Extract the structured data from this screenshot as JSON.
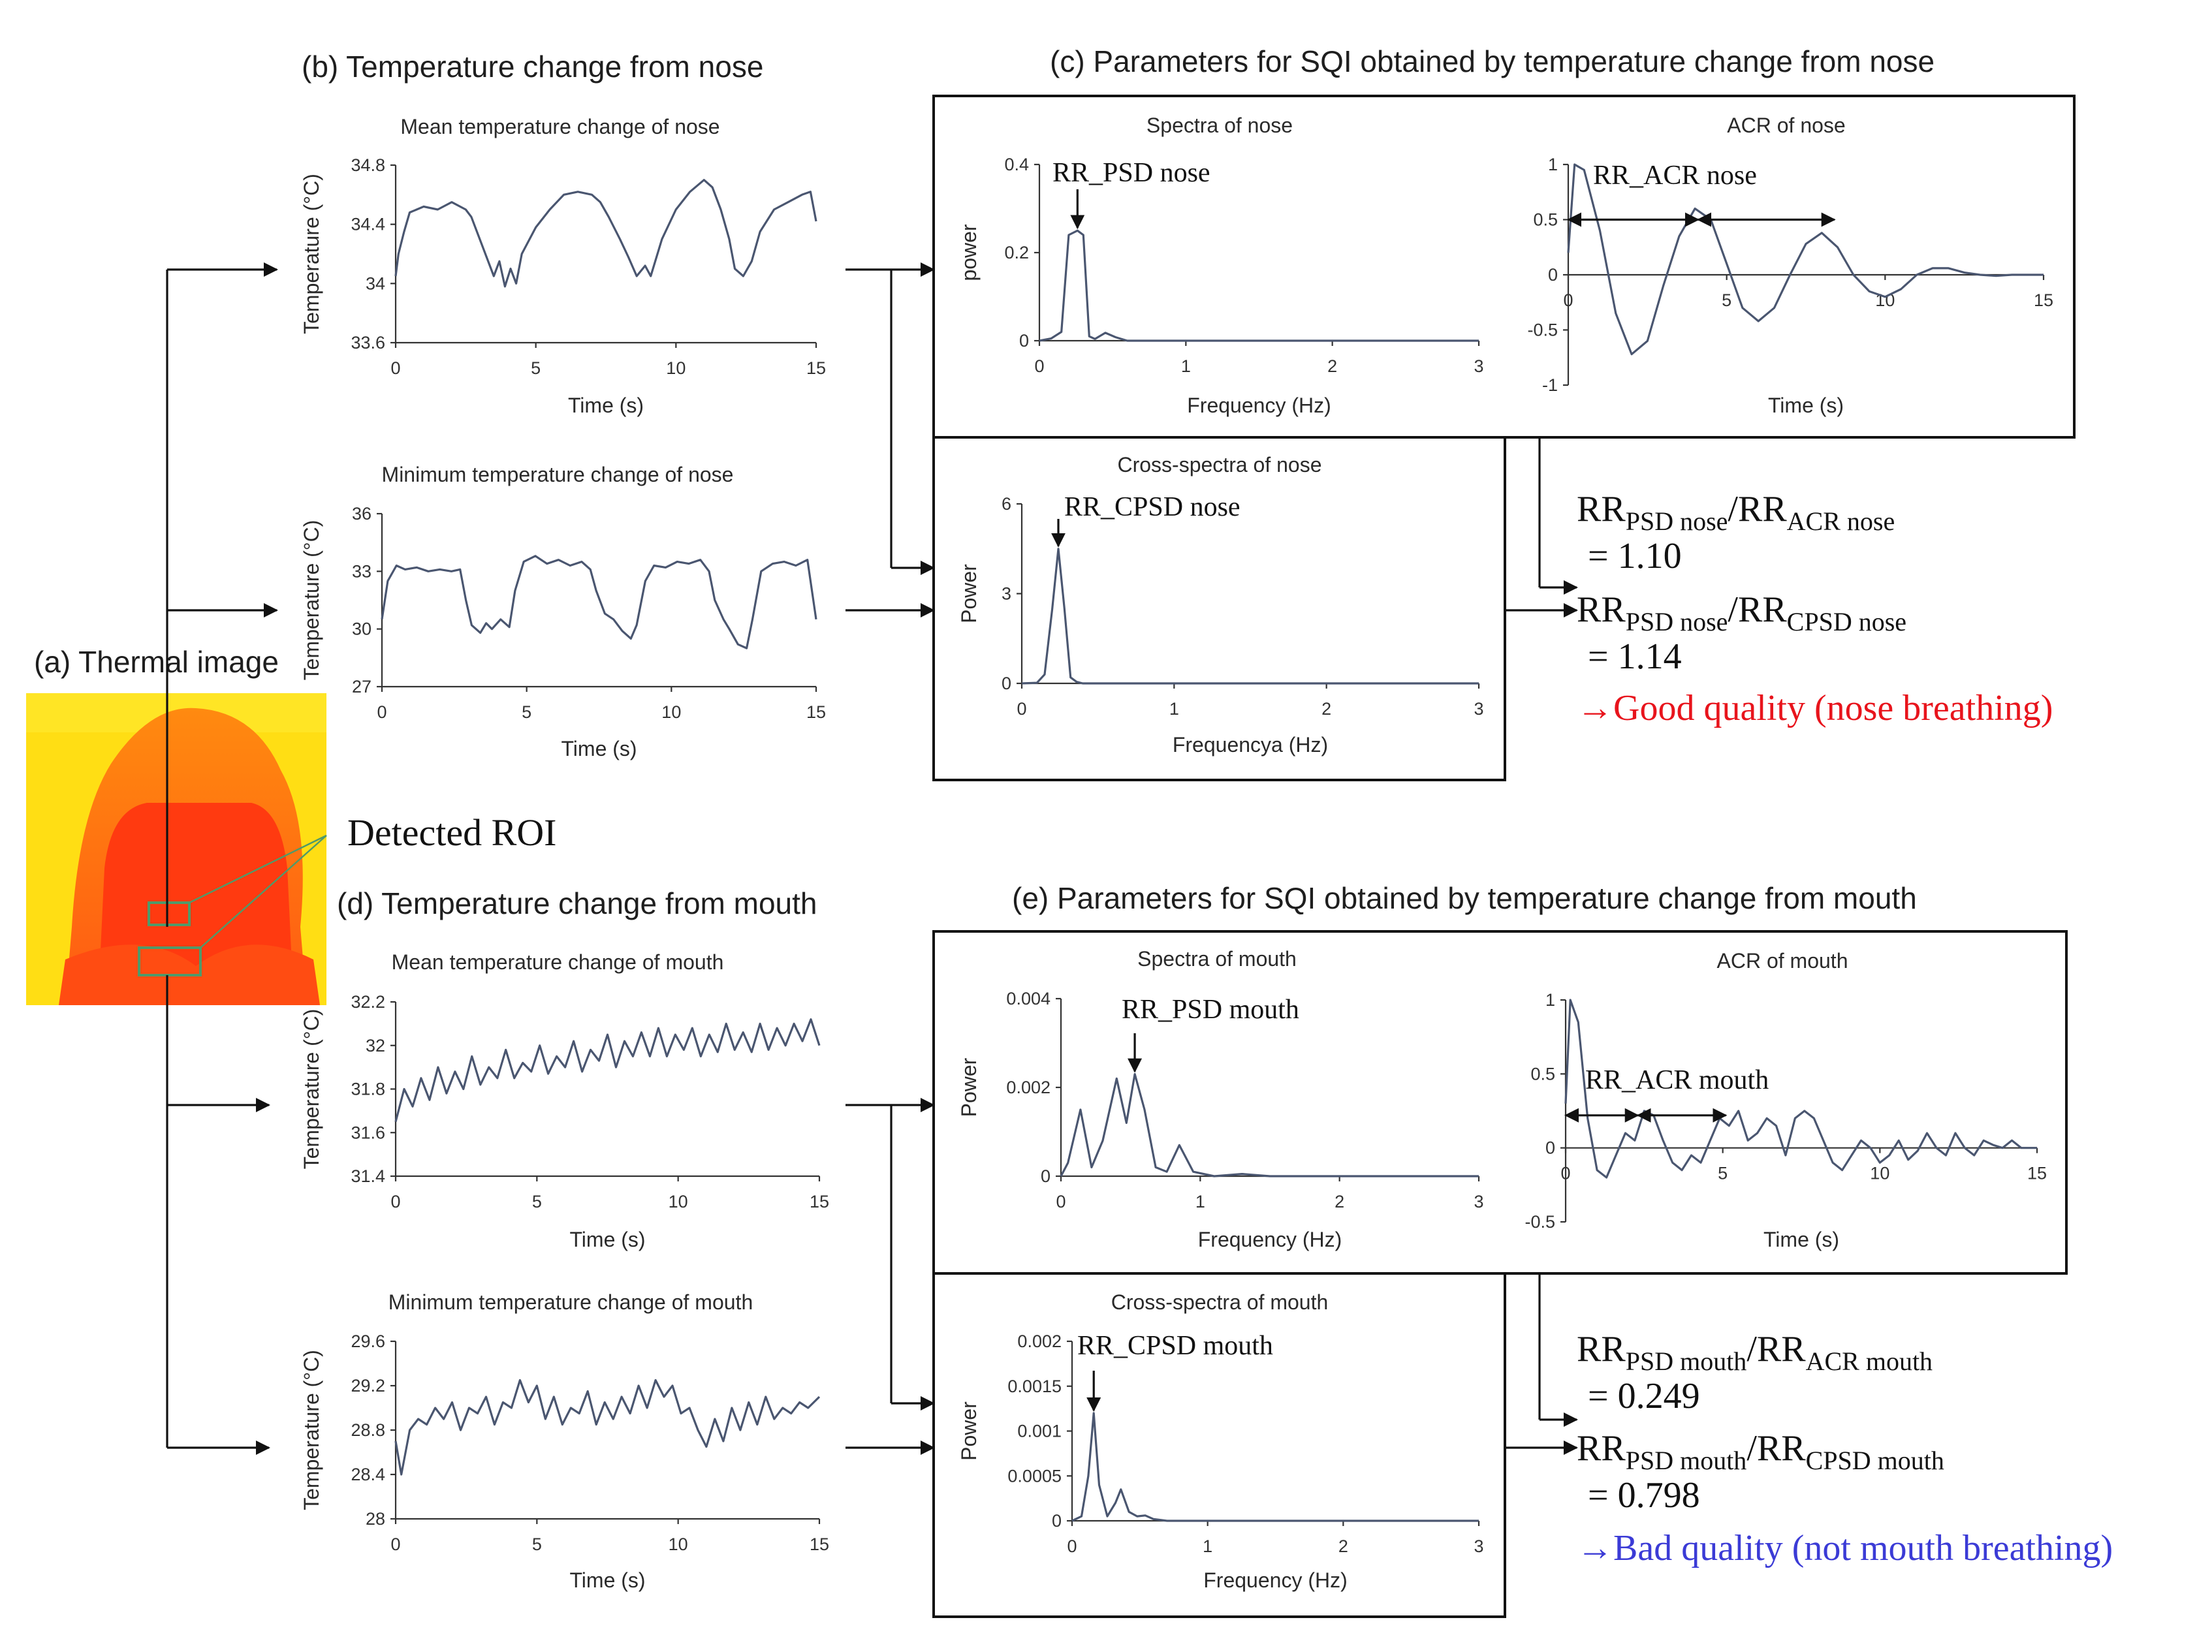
{
  "sections": {
    "a": "(a) Thermal image",
    "b": "(b) Temperature change from nose",
    "c": "(c) Parameters for SQI obtained by temperature change from nose",
    "d": "(d) Temperature change from mouth",
    "e": "(e) Parameters for SQI obtained by temperature change from mouth"
  },
  "roi_label": "Detected ROI",
  "colors": {
    "trace": "#4a5670",
    "good": "#e8141c",
    "bad": "#3b3bd6",
    "thermal_bg": "#ffde14",
    "thermal_face": "#ff3a10",
    "roi_box": "#4f9a6a"
  },
  "results": {
    "nose": {
      "r1_lhs": {
        "a": "RR",
        "as": "PSD nose",
        "b": "RR",
        "bs": "ACR nose"
      },
      "r1_value": "= 1.10",
      "r2_lhs": {
        "a": "RR",
        "as": "PSD nose",
        "b": "RR",
        "bs": "CPSD nose"
      },
      "r2_value": "= 1.14",
      "verdict": "→Good quality (nose breathing)"
    },
    "mouth": {
      "r1_lhs": {
        "a": "RR",
        "as": "PSD mouth",
        "b": "RR",
        "bs": "ACR mouth"
      },
      "r1_value": "= 0.249",
      "r2_lhs": {
        "a": "RR",
        "as": "PSD mouth",
        "b": "RR",
        "bs": "CPSD mouth"
      },
      "r2_value": "= 0.798",
      "verdict": "→Bad quality (not mouth breathing)"
    }
  },
  "chart_data": [
    {
      "id": "mean-nose",
      "type": "line",
      "title": "Mean temperature change of nose",
      "xlabel": "Time (s)",
      "ylabel": "Temperature (°C)",
      "xlim": [
        0,
        15
      ],
      "ylim": [
        33.6,
        34.8
      ],
      "xticks": [
        "0",
        "5",
        "10",
        "15"
      ],
      "yticks": [
        "33.6",
        "34",
        "34.4",
        "34.8"
      ],
      "x": [
        0,
        0.1,
        0.3,
        0.5,
        1,
        1.5,
        2,
        2.5,
        2.7,
        3,
        3.3,
        3.5,
        3.7,
        3.9,
        4.1,
        4.3,
        4.5,
        5,
        5.5,
        6,
        6.5,
        7,
        7.3,
        7.6,
        8,
        8.3,
        8.6,
        8.9,
        9.1,
        9.5,
        10,
        10.5,
        11,
        11.3,
        11.6,
        11.9,
        12.1,
        12.4,
        12.7,
        13,
        13.5,
        14,
        14.5,
        14.8,
        15
      ],
      "values": [
        34.05,
        34.2,
        34.35,
        34.48,
        34.52,
        34.5,
        34.55,
        34.5,
        34.45,
        34.3,
        34.15,
        34.05,
        34.15,
        33.98,
        34.1,
        34.0,
        34.2,
        34.38,
        34.5,
        34.6,
        34.62,
        34.6,
        34.55,
        34.45,
        34.3,
        34.18,
        34.05,
        34.12,
        34.05,
        34.3,
        34.5,
        34.62,
        34.7,
        34.65,
        34.5,
        34.3,
        34.1,
        34.05,
        34.15,
        34.35,
        34.5,
        34.55,
        34.6,
        34.62,
        34.42
      ]
    },
    {
      "id": "min-nose",
      "type": "line",
      "title": "Minimum temperature change of nose",
      "xlabel": "Time (s)",
      "ylabel": "Temperature (°C)",
      "xlim": [
        0,
        15
      ],
      "ylim": [
        27,
        36
      ],
      "xticks": [
        "0",
        "5",
        "10",
        "15"
      ],
      "yticks": [
        "27",
        "30",
        "33",
        "36"
      ],
      "x": [
        0,
        0.2,
        0.5,
        0.8,
        1.2,
        1.6,
        2,
        2.4,
        2.7,
        2.9,
        3.1,
        3.4,
        3.6,
        3.8,
        4.1,
        4.4,
        4.6,
        4.9,
        5.3,
        5.7,
        6.1,
        6.5,
        6.9,
        7.2,
        7.4,
        7.7,
        8,
        8.3,
        8.6,
        8.8,
        9.1,
        9.4,
        9.8,
        10.2,
        10.6,
        11,
        11.3,
        11.5,
        11.8,
        12,
        12.3,
        12.6,
        12.8,
        13.1,
        13.5,
        13.9,
        14.3,
        14.7,
        15
      ],
      "values": [
        30.5,
        32.5,
        33.3,
        33.1,
        33.2,
        33.0,
        33.1,
        33.0,
        33.1,
        31.5,
        30.2,
        29.8,
        30.3,
        30.0,
        30.5,
        30.1,
        32.0,
        33.5,
        33.8,
        33.4,
        33.6,
        33.3,
        33.5,
        33.1,
        32.0,
        30.8,
        30.5,
        29.9,
        29.5,
        30.2,
        32.5,
        33.3,
        33.2,
        33.5,
        33.4,
        33.6,
        33.0,
        31.5,
        30.5,
        30.0,
        29.2,
        29.0,
        30.5,
        33.0,
        33.4,
        33.5,
        33.3,
        33.6,
        30.5
      ]
    },
    {
      "id": "spectra-nose",
      "type": "line",
      "title": "Spectra of nose",
      "xlabel": "Frequency (Hz)",
      "ylabel": "power",
      "xlim": [
        0,
        3
      ],
      "ylim": [
        0,
        0.4
      ],
      "xticks": [
        "0",
        "1",
        "2",
        "3"
      ],
      "yticks": [
        "0",
        "0.2",
        "0.4"
      ],
      "x": [
        0,
        0.08,
        0.15,
        0.2,
        0.26,
        0.3,
        0.34,
        0.38,
        0.45,
        0.52,
        0.6,
        1,
        2,
        3
      ],
      "values": [
        0,
        0.005,
        0.02,
        0.24,
        0.25,
        0.24,
        0.01,
        0.004,
        0.018,
        0.008,
        0,
        0,
        0,
        0
      ],
      "annotation": "RR_PSD nose"
    },
    {
      "id": "acr-nose",
      "type": "line",
      "title": "ACR of nose",
      "xlabel": "Time (s)",
      "ylabel": "",
      "xlim": [
        0,
        15
      ],
      "ylim": [
        -1,
        1
      ],
      "xticks": [
        "0",
        "5",
        "10",
        "15"
      ],
      "yticks": [
        "-1",
        "-0.5",
        "0",
        "0.5",
        "1"
      ],
      "x": [
        0,
        0.2,
        0.5,
        1,
        1.5,
        2,
        2.5,
        3,
        3.5,
        4,
        4.5,
        5,
        5.5,
        6,
        6.5,
        7,
        7.5,
        8,
        8.5,
        9,
        9.5,
        10,
        10.5,
        11,
        11.5,
        12,
        12.5,
        13,
        13.5,
        14,
        14.5,
        15
      ],
      "values": [
        0.2,
        1.0,
        0.95,
        0.4,
        -0.35,
        -0.72,
        -0.6,
        -0.1,
        0.35,
        0.6,
        0.5,
        0.1,
        -0.3,
        -0.42,
        -0.3,
        0,
        0.28,
        0.38,
        0.25,
        0,
        -0.15,
        -0.2,
        -0.13,
        0,
        0.06,
        0.06,
        0.02,
        0,
        -0.01,
        0,
        0,
        0
      ],
      "annotation": "RR_ACR nose"
    },
    {
      "id": "cross-nose",
      "type": "line",
      "title": "Cross-spectra of nose",
      "xlabel": "Frequencya (Hz)",
      "ylabel": "Power",
      "xlim": [
        0,
        3
      ],
      "ylim": [
        0,
        6
      ],
      "xticks": [
        "0",
        "1",
        "2",
        "3"
      ],
      "yticks": [
        "0",
        "3",
        "6"
      ],
      "x": [
        0,
        0.1,
        0.15,
        0.2,
        0.24,
        0.28,
        0.32,
        0.36,
        0.4,
        1,
        2,
        3
      ],
      "values": [
        0,
        0.02,
        0.3,
        2.5,
        4.5,
        2.5,
        0.2,
        0.05,
        0,
        0,
        0,
        0
      ],
      "annotation": "RR_CPSD nose"
    },
    {
      "id": "mean-mouth",
      "type": "line",
      "title": "Mean temperature change of  mouth",
      "xlabel": "Time (s)",
      "ylabel": "Temperature (°C)",
      "xlim": [
        0,
        15
      ],
      "ylim": [
        31.4,
        32.2
      ],
      "xticks": [
        "0",
        "5",
        "10",
        "15"
      ],
      "yticks": [
        "31.4",
        "31.6",
        "31.8",
        "32",
        "32.2"
      ],
      "x": [
        0,
        0.3,
        0.6,
        0.9,
        1.2,
        1.5,
        1.8,
        2.1,
        2.4,
        2.7,
        3,
        3.3,
        3.6,
        3.9,
        4.2,
        4.5,
        4.8,
        5.1,
        5.4,
        5.7,
        6,
        6.3,
        6.6,
        6.9,
        7.2,
        7.5,
        7.8,
        8.1,
        8.4,
        8.7,
        9,
        9.3,
        9.6,
        9.9,
        10.2,
        10.5,
        10.8,
        11.1,
        11.4,
        11.7,
        12,
        12.3,
        12.6,
        12.9,
        13.2,
        13.5,
        13.8,
        14.1,
        14.4,
        14.7,
        15
      ],
      "values": [
        31.65,
        31.8,
        31.72,
        31.85,
        31.75,
        31.9,
        31.78,
        31.88,
        31.8,
        31.95,
        31.82,
        31.9,
        31.85,
        31.98,
        31.85,
        31.92,
        31.88,
        32.0,
        31.87,
        31.95,
        31.9,
        32.02,
        31.88,
        31.98,
        31.93,
        32.05,
        31.9,
        32.02,
        31.95,
        32.06,
        31.95,
        32.08,
        31.95,
        32.05,
        31.98,
        32.08,
        31.95,
        32.05,
        31.97,
        32.1,
        31.98,
        32.06,
        31.97,
        32.1,
        31.98,
        32.08,
        32.0,
        32.1,
        32.02,
        32.12,
        32.0
      ]
    },
    {
      "id": "min-mouth",
      "type": "line",
      "title": "Minimum temperature change of  mouth",
      "xlabel": "Time (s)",
      "ylabel": "Temperature (°C)",
      "xlim": [
        0,
        15
      ],
      "ylim": [
        28,
        29.6
      ],
      "xticks": [
        "0",
        "5",
        "10",
        "15"
      ],
      "yticks": [
        "28",
        "28.4",
        "28.8",
        "29.2",
        "29.6"
      ],
      "x": [
        0,
        0.2,
        0.5,
        0.8,
        1.1,
        1.4,
        1.7,
        2,
        2.3,
        2.6,
        2.9,
        3.2,
        3.5,
        3.8,
        4.1,
        4.4,
        4.7,
        5,
        5.3,
        5.6,
        5.9,
        6.2,
        6.5,
        6.8,
        7.1,
        7.4,
        7.7,
        8,
        8.3,
        8.6,
        8.9,
        9.2,
        9.5,
        9.8,
        10.1,
        10.4,
        10.7,
        11,
        11.3,
        11.6,
        11.9,
        12.2,
        12.5,
        12.8,
        13.1,
        13.4,
        13.7,
        14,
        14.3,
        14.6,
        15
      ],
      "values": [
        28.7,
        28.4,
        28.8,
        28.9,
        28.85,
        29.0,
        28.9,
        29.05,
        28.8,
        29.0,
        28.95,
        29.1,
        28.85,
        29.05,
        29.0,
        29.25,
        29.05,
        29.2,
        28.9,
        29.1,
        28.85,
        29.0,
        28.95,
        29.15,
        28.85,
        29.05,
        28.9,
        29.1,
        28.95,
        29.2,
        29.0,
        29.25,
        29.1,
        29.2,
        28.95,
        29.0,
        28.8,
        28.65,
        28.9,
        28.7,
        29.0,
        28.8,
        29.05,
        28.85,
        29.1,
        28.9,
        29.0,
        28.95,
        29.05,
        29.0,
        29.1
      ]
    },
    {
      "id": "spectra-mouth",
      "type": "line",
      "title": "Spectra of mouth",
      "xlabel": "Frequency (Hz)",
      "ylabel": "Power",
      "xlim": [
        0,
        3
      ],
      "ylim": [
        0,
        0.004
      ],
      "xticks": [
        "0",
        "1",
        "2",
        "3"
      ],
      "yticks": [
        "0",
        "0.002",
        "0.004"
      ],
      "x": [
        0,
        0.05,
        0.14,
        0.22,
        0.3,
        0.4,
        0.47,
        0.53,
        0.6,
        0.68,
        0.76,
        0.85,
        0.95,
        1.1,
        1.3,
        1.5,
        2,
        3
      ],
      "values": [
        0,
        0.0003,
        0.0015,
        0.0002,
        0.0008,
        0.0022,
        0.0012,
        0.0023,
        0.0015,
        0.0002,
        0.0001,
        0.0007,
        0.0001,
        0,
        5e-05,
        0,
        0,
        0
      ],
      "annotation": "RR_PSD mouth"
    },
    {
      "id": "acr-mouth",
      "type": "line",
      "title": "ACR of mouth",
      "xlabel": "Time (s)",
      "ylabel": "",
      "xlim": [
        0,
        15
      ],
      "ylim": [
        -0.5,
        1
      ],
      "xticks": [
        "0",
        "5",
        "10",
        "15"
      ],
      "yticks": [
        "-0.5",
        "0",
        "0.5",
        "1"
      ],
      "x": [
        0,
        0.15,
        0.4,
        0.7,
        1,
        1.3,
        1.6,
        1.9,
        2.2,
        2.5,
        2.8,
        3.1,
        3.4,
        3.7,
        4,
        4.3,
        4.6,
        4.9,
        5.2,
        5.5,
        5.8,
        6.1,
        6.4,
        6.7,
        7,
        7.3,
        7.6,
        7.9,
        8.2,
        8.5,
        8.8,
        9.1,
        9.4,
        9.7,
        10,
        10.3,
        10.6,
        10.9,
        11.2,
        11.5,
        11.8,
        12.1,
        12.4,
        12.7,
        13,
        13.3,
        13.6,
        13.9,
        14.2,
        14.5,
        15
      ],
      "values": [
        0.3,
        1.0,
        0.85,
        0.2,
        -0.15,
        -0.2,
        -0.05,
        0.1,
        0.05,
        0.25,
        0.22,
        0.05,
        -0.1,
        -0.15,
        -0.05,
        -0.1,
        0.05,
        0.2,
        0.15,
        0.25,
        0.05,
        0.1,
        0.2,
        0.15,
        -0.05,
        0.2,
        0.25,
        0.2,
        0.05,
        -0.1,
        -0.15,
        -0.05,
        0.05,
        0.0,
        -0.1,
        -0.05,
        0.05,
        -0.08,
        -0.02,
        0.1,
        0.0,
        -0.05,
        0.1,
        0.0,
        -0.05,
        0.05,
        0.02,
        0.0,
        0.05,
        0.0,
        0.0
      ],
      "annotation": "RR_ACR mouth"
    },
    {
      "id": "cross-mouth",
      "type": "line",
      "title": "Cross-spectra of mouth",
      "xlabel": "Frequency (Hz)",
      "ylabel": "Power",
      "xlim": [
        0,
        3
      ],
      "ylim": [
        0,
        0.002
      ],
      "xticks": [
        "0",
        "1",
        "2",
        "3"
      ],
      "yticks": [
        "0",
        "0.0005",
        "0.001",
        "0.0015",
        "0.002"
      ],
      "x": [
        0,
        0.07,
        0.12,
        0.16,
        0.2,
        0.26,
        0.32,
        0.36,
        0.42,
        0.48,
        0.54,
        0.6,
        0.7,
        1,
        2,
        3
      ],
      "values": [
        0,
        5e-05,
        0.0005,
        0.0012,
        0.0004,
        5e-05,
        0.0002,
        0.00035,
        0.0001,
        5e-05,
        6e-05,
        2e-05,
        0,
        0,
        0,
        0
      ],
      "annotation": "RR_CPSD mouth"
    }
  ]
}
